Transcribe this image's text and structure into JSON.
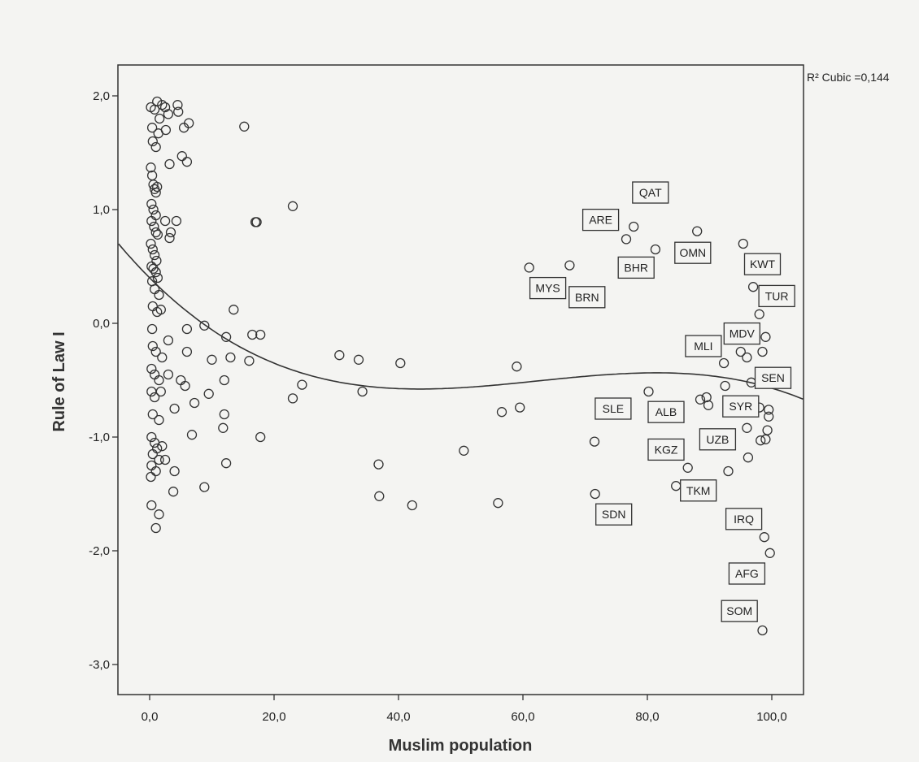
{
  "chart_data": {
    "type": "scatter",
    "title": "",
    "xlabel": "Muslim population",
    "ylabel": "Rule of Law I",
    "xlim": [
      -5,
      105
    ],
    "ylim": [
      -3.3,
      2.3
    ],
    "xticks": [
      0,
      20,
      40,
      60,
      80,
      100
    ],
    "xtick_labels": [
      "0,0",
      "20,0",
      "40,0",
      "60,0",
      "80,0",
      "100,0"
    ],
    "yticks": [
      2,
      1,
      0,
      -1,
      -2,
      -3
    ],
    "ytick_labels": [
      "2,0",
      "1,0",
      "0,0",
      "-1,0",
      "-2,0",
      "-3,0"
    ],
    "grid": false,
    "fit": {
      "type": "cubic",
      "annotation": "R² Cubic =0,144",
      "coefficients": [
        0.4,
        -0.0548,
        0.000968,
        -5.17e-06
      ]
    },
    "points": [
      [
        0.2,
        1.9
      ],
      [
        0.8,
        1.88
      ],
      [
        1.2,
        1.95
      ],
      [
        1.6,
        1.8
      ],
      [
        2.0,
        1.92
      ],
      [
        2.5,
        1.9
      ],
      [
        3.0,
        1.84
      ],
      [
        4.5,
        1.92
      ],
      [
        4.6,
        1.86
      ],
      [
        5.5,
        1.72
      ],
      [
        6.3,
        1.76
      ],
      [
        0.4,
        1.72
      ],
      [
        1.4,
        1.67
      ],
      [
        2.6,
        1.7
      ],
      [
        0.5,
        1.6
      ],
      [
        1.0,
        1.55
      ],
      [
        5.2,
        1.47
      ],
      [
        6.0,
        1.42
      ],
      [
        3.2,
        1.4
      ],
      [
        15.2,
        1.73
      ],
      [
        0.2,
        1.37
      ],
      [
        0.4,
        1.3
      ],
      [
        0.6,
        1.22
      ],
      [
        0.8,
        1.18
      ],
      [
        1.0,
        1.15
      ],
      [
        1.2,
        1.2
      ],
      [
        0.3,
        1.05
      ],
      [
        0.6,
        1.0
      ],
      [
        1.0,
        0.95
      ],
      [
        0.3,
        0.9
      ],
      [
        0.7,
        0.85
      ],
      [
        1.0,
        0.8
      ],
      [
        1.3,
        0.78
      ],
      [
        2.5,
        0.9
      ],
      [
        3.4,
        0.8
      ],
      [
        4.3,
        0.9
      ],
      [
        3.2,
        0.75
      ],
      [
        23.0,
        1.03
      ],
      [
        17.0,
        0.89
      ],
      [
        17.2,
        0.89
      ],
      [
        0.2,
        0.7
      ],
      [
        0.5,
        0.65
      ],
      [
        0.8,
        0.6
      ],
      [
        1.1,
        0.55
      ],
      [
        0.3,
        0.5
      ],
      [
        0.6,
        0.48
      ],
      [
        1.0,
        0.45
      ],
      [
        1.3,
        0.4
      ],
      [
        0.4,
        0.37
      ],
      [
        0.8,
        0.3
      ],
      [
        1.5,
        0.25
      ],
      [
        0.5,
        0.15
      ],
      [
        1.2,
        0.1
      ],
      [
        1.8,
        0.12
      ],
      [
        0.4,
        -0.05
      ],
      [
        13.5,
        0.12
      ],
      [
        6.0,
        -0.05
      ],
      [
        8.8,
        -0.02
      ],
      [
        12.3,
        -0.12
      ],
      [
        16.5,
        -0.1
      ],
      [
        17.8,
        -0.1
      ],
      [
        0.5,
        -0.2
      ],
      [
        1.0,
        -0.25
      ],
      [
        2.0,
        -0.3
      ],
      [
        3.0,
        -0.15
      ],
      [
        6.0,
        -0.25
      ],
      [
        10.0,
        -0.32
      ],
      [
        13.0,
        -0.3
      ],
      [
        16.0,
        -0.33
      ],
      [
        0.3,
        -0.4
      ],
      [
        0.8,
        -0.45
      ],
      [
        1.5,
        -0.5
      ],
      [
        3.0,
        -0.45
      ],
      [
        5.0,
        -0.5
      ],
      [
        5.7,
        -0.55
      ],
      [
        0.3,
        -0.6
      ],
      [
        0.8,
        -0.65
      ],
      [
        1.8,
        -0.6
      ],
      [
        4.0,
        -0.75
      ],
      [
        7.2,
        -0.7
      ],
      [
        9.5,
        -0.62
      ],
      [
        12.0,
        -0.5
      ],
      [
        0.5,
        -0.8
      ],
      [
        1.5,
        -0.85
      ],
      [
        12.0,
        -0.8
      ],
      [
        11.8,
        -0.92
      ],
      [
        6.8,
        -0.98
      ],
      [
        17.8,
        -1.0
      ],
      [
        0.3,
        -1.0
      ],
      [
        0.8,
        -1.05
      ],
      [
        1.2,
        -1.1
      ],
      [
        2.0,
        -1.08
      ],
      [
        0.5,
        -1.15
      ],
      [
        1.5,
        -1.2
      ],
      [
        0.3,
        -1.25
      ],
      [
        1.0,
        -1.3
      ],
      [
        2.5,
        -1.2
      ],
      [
        0.2,
        -1.35
      ],
      [
        4.0,
        -1.3
      ],
      [
        3.8,
        -1.48
      ],
      [
        12.3,
        -1.23
      ],
      [
        8.8,
        -1.44
      ],
      [
        0.3,
        -1.6
      ],
      [
        1.5,
        -1.68
      ],
      [
        1.0,
        -1.8
      ],
      [
        23.0,
        -0.66
      ],
      [
        24.5,
        -0.54
      ],
      [
        30.5,
        -0.28
      ],
      [
        33.6,
        -0.32
      ],
      [
        34.2,
        -0.6
      ],
      [
        40.3,
        -0.35
      ],
      [
        36.8,
        -1.24
      ],
      [
        36.9,
        -1.52
      ],
      [
        42.2,
        -1.6
      ],
      [
        50.5,
        -1.12
      ],
      [
        56.0,
        -1.58
      ],
      [
        56.6,
        -0.78
      ],
      [
        59.0,
        -0.38
      ],
      [
        59.5,
        -0.74
      ],
      [
        71.5,
        -1.04
      ],
      [
        71.6,
        -1.5
      ],
      [
        61.0,
        0.49
      ],
      [
        67.5,
        0.51
      ],
      [
        76.6,
        0.74
      ],
      [
        77.8,
        0.85
      ],
      [
        81.3,
        0.65
      ],
      [
        88.0,
        0.81
      ],
      [
        95.4,
        0.7
      ],
      [
        97.0,
        0.32
      ],
      [
        98.0,
        0.08
      ],
      [
        99.0,
        -0.12
      ],
      [
        98.5,
        -0.25
      ],
      [
        95.0,
        -0.25
      ],
      [
        96.0,
        -0.3
      ],
      [
        92.3,
        -0.35
      ],
      [
        96.7,
        -0.52
      ],
      [
        92.5,
        -0.55
      ],
      [
        80.2,
        -0.6
      ],
      [
        88.5,
        -0.67
      ],
      [
        89.5,
        -0.65
      ],
      [
        89.8,
        -0.72
      ],
      [
        98.0,
        -0.74
      ],
      [
        99.5,
        -0.76
      ],
      [
        99.5,
        -0.82
      ],
      [
        96.0,
        -0.92
      ],
      [
        99.3,
        -0.94
      ],
      [
        98.2,
        -1.03
      ],
      [
        99.0,
        -1.02
      ],
      [
        96.2,
        -1.18
      ],
      [
        93.0,
        -1.3
      ],
      [
        86.5,
        -1.27
      ],
      [
        84.6,
        -1.43
      ],
      [
        98.8,
        -1.88
      ],
      [
        99.7,
        -2.02
      ],
      [
        98.5,
        -2.7
      ]
    ],
    "labels": [
      {
        "text": "QAT",
        "x": 80.5,
        "y": 1.15
      },
      {
        "text": "ARE",
        "x": 72.5,
        "y": 0.91
      },
      {
        "text": "OMN",
        "x": 87.3,
        "y": 0.62
      },
      {
        "text": "BHR",
        "x": 78.2,
        "y": 0.49
      },
      {
        "text": "KWT",
        "x": 98.5,
        "y": 0.52
      },
      {
        "text": "MYS",
        "x": 64.0,
        "y": 0.31
      },
      {
        "text": "BRN",
        "x": 70.3,
        "y": 0.23
      },
      {
        "text": "TUR",
        "x": 100.8,
        "y": 0.24
      },
      {
        "text": "MDV",
        "x": 95.2,
        "y": -0.09
      },
      {
        "text": "MLI",
        "x": 89.0,
        "y": -0.2
      },
      {
        "text": "SEN",
        "x": 100.2,
        "y": -0.48
      },
      {
        "text": "SYR",
        "x": 95.0,
        "y": -0.73
      },
      {
        "text": "SLE",
        "x": 74.5,
        "y": -0.75
      },
      {
        "text": "ALB",
        "x": 83.0,
        "y": -0.78
      },
      {
        "text": "UZB",
        "x": 91.3,
        "y": -1.02
      },
      {
        "text": "KGZ",
        "x": 83.0,
        "y": -1.11
      },
      {
        "text": "TKM",
        "x": 88.2,
        "y": -1.47
      },
      {
        "text": "SDN",
        "x": 74.6,
        "y": -1.68
      },
      {
        "text": "IRQ",
        "x": 95.5,
        "y": -1.72
      },
      {
        "text": "AFG",
        "x": 96.0,
        "y": -2.2
      },
      {
        "text": "SOM",
        "x": 94.8,
        "y": -2.53
      }
    ]
  }
}
